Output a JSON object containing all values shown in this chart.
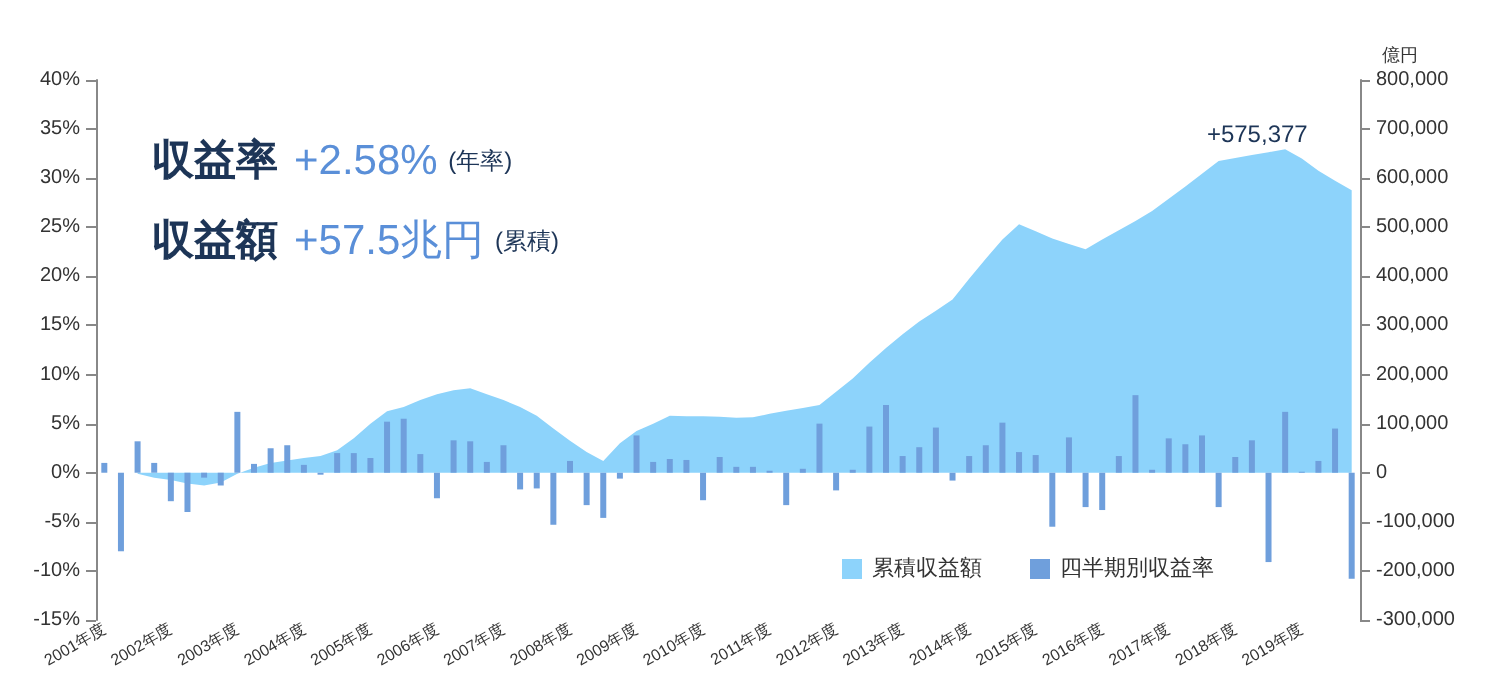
{
  "chart_data": {
    "type": "bar",
    "categories": [
      "2001年度",
      null,
      null,
      null,
      "2002年度",
      null,
      null,
      null,
      "2003年度",
      null,
      null,
      null,
      "2004年度",
      null,
      null,
      null,
      "2005年度",
      null,
      null,
      null,
      "2006年度",
      null,
      null,
      null,
      "2007年度",
      null,
      null,
      null,
      "2008年度",
      null,
      null,
      null,
      "2009年度",
      null,
      null,
      null,
      "2010年度",
      null,
      null,
      null,
      "2011年度",
      null,
      null,
      null,
      "2012年度",
      null,
      null,
      null,
      "2013年度",
      null,
      null,
      null,
      "2014年度",
      null,
      null,
      null,
      "2015年度",
      null,
      null,
      null,
      "2016年度",
      null,
      null,
      null,
      "2017年度",
      null,
      null,
      null,
      "2018年度",
      null,
      null,
      null,
      "2019年度",
      null,
      null,
      null
    ],
    "series": [
      {
        "name": "累積収益額",
        "type": "area",
        "axis": "y2",
        "color": "#8dd3fb",
        "values": [
          null,
          null,
          -2000,
          -10000,
          -15000,
          -22000,
          -26000,
          -20000,
          -2000,
          10000,
          20000,
          25000,
          30000,
          34000,
          46000,
          70000,
          100000,
          125000,
          134000,
          148000,
          160000,
          168000,
          172000,
          160000,
          148000,
          134000,
          116000,
          90000,
          65000,
          42000,
          24000,
          60000,
          85000,
          100000,
          116000,
          115000,
          115000,
          114000,
          112000,
          113000,
          120000,
          126000,
          132000,
          138000,
          165000,
          192000,
          224000,
          254000,
          282000,
          308000,
          330000,
          353000,
          395000,
          436000,
          475000,
          506000,
          492000,
          477000,
          466000,
          455000,
          475000,
          494000,
          513000,
          533000,
          558000,
          583000,
          609000,
          635000,
          641000,
          647000,
          653000,
          659000,
          640000,
          615000,
          595000,
          575377
        ]
      },
      {
        "name": "四半期別収益率",
        "color": "#6f9fdc",
        "values": [
          1.0,
          -8.0,
          3.2,
          1.0,
          -2.9,
          -4.0,
          -0.5,
          -1.3,
          6.2,
          0.9,
          2.5,
          2.8,
          0.8,
          -0.2,
          2.0,
          2.0,
          1.5,
          5.2,
          5.5,
          1.9,
          -2.6,
          3.3,
          3.2,
          1.1,
          2.8,
          -1.7,
          -1.6,
          -5.3,
          1.2,
          -3.3,
          -4.6,
          -0.6,
          3.8,
          1.1,
          1.4,
          1.3,
          -2.8,
          1.6,
          0.6,
          0.6,
          0.2,
          -3.3,
          0.4,
          5.0,
          -1.8,
          0.3,
          4.7,
          6.9,
          1.7,
          2.6,
          4.6,
          -0.8,
          1.7,
          2.8,
          5.1,
          2.1,
          1.8,
          -5.5,
          3.6,
          -3.5,
          -3.8,
          1.7,
          7.9,
          0.3,
          3.5,
          2.9,
          3.8,
          -3.5,
          1.6,
          3.3,
          -9.1,
          6.2,
          0.1,
          1.2,
          4.5,
          -10.8
        ]
      }
    ],
    "ylim": [
      -15,
      40
    ],
    "yticks": [
      {
        "value": -15,
        "label": "-15%"
      },
      {
        "value": -10,
        "label": "-10%"
      },
      {
        "value": -5,
        "label": "-5%"
      },
      {
        "value": 0,
        "label": "0%"
      },
      {
        "value": 5,
        "label": "5%"
      },
      {
        "value": 10,
        "label": "10%"
      },
      {
        "value": 15,
        "label": "15%"
      },
      {
        "value": 20,
        "label": "20%"
      },
      {
        "value": 25,
        "label": "25%"
      },
      {
        "value": 30,
        "label": "30%"
      },
      {
        "value": 35,
        "label": "35%"
      },
      {
        "value": 40,
        "label": "40%"
      }
    ],
    "y2label": "億円",
    "y2lim": [
      -300000,
      800000
    ],
    "y2ticks": [
      {
        "value": -300000,
        "label": "-300,000"
      },
      {
        "value": -200000,
        "label": "-200,000"
      },
      {
        "value": -100000,
        "label": "-100,000"
      },
      0,
      {
        "value": 100000,
        "label": "100,000"
      },
      {
        "value": 200000,
        "label": "200,000"
      },
      {
        "value": 300000,
        "label": "300,000"
      },
      {
        "value": 400000,
        "label": "400,000"
      },
      {
        "value": 500000,
        "label": "500,000"
      },
      {
        "value": 600000,
        "label": "600,000"
      },
      {
        "value": 700000,
        "label": "700,000"
      },
      {
        "value": 800000,
        "label": "800,000"
      }
    ],
    "annotations": [
      "収益率 +2.58% (年率)",
      "収益額 +57.5兆円 (累積)",
      "+575,377"
    ],
    "legend": "bottom right",
    "grid": false
  }
}
